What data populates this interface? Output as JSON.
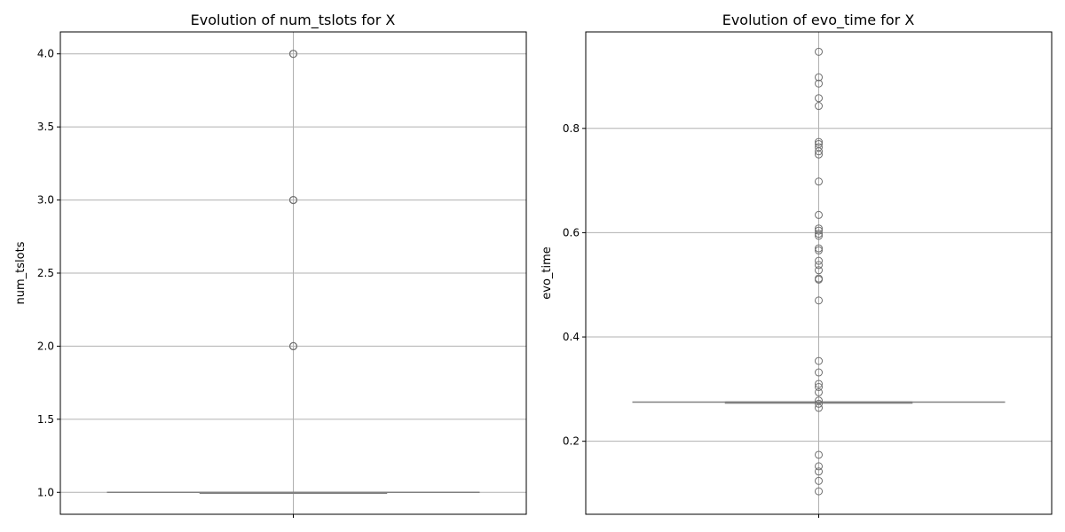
{
  "chart_data": [
    {
      "type": "box",
      "title": "Evolution of num_tslots for X",
      "xlabel": "",
      "ylabel": "num_tslots",
      "ylim": [
        0.85,
        4.15
      ],
      "yticks": [
        "1.0",
        "1.5",
        "2.0",
        "2.5",
        "3.0",
        "3.5",
        "4.0"
      ],
      "grid": true,
      "box": {
        "q1": 1.0,
        "median": 1.0,
        "q3": 1.0,
        "whisker_low": 1.0,
        "whisker_high": 1.0
      },
      "outliers": [
        2.0,
        2.0,
        2.0,
        3.0,
        3.0,
        3.0,
        4.0,
        4.0,
        4.0
      ],
      "colors": {
        "box": "#808080",
        "outlier": "#707070",
        "grid": "#b0b0b0"
      }
    },
    {
      "type": "box",
      "title": "Evolution of evo_time for X",
      "xlabel": "",
      "ylabel": "evo_time",
      "ylim": [
        0.06,
        0.985
      ],
      "yticks": [
        "0.2",
        "0.4",
        "0.6",
        "0.8"
      ],
      "grid": true,
      "box": {
        "q1": 0.275,
        "median": 0.275,
        "q3": 0.275,
        "whisker_low": 0.275,
        "whisker_high": 0.275
      },
      "outliers": [
        0.104,
        0.124,
        0.142,
        0.152,
        0.174,
        0.264,
        0.272,
        0.278,
        0.294,
        0.304,
        0.31,
        0.332,
        0.354,
        0.47,
        0.51,
        0.512,
        0.528,
        0.538,
        0.546,
        0.566,
        0.57,
        0.594,
        0.598,
        0.604,
        0.608,
        0.634,
        0.698,
        0.75,
        0.756,
        0.764,
        0.77,
        0.774,
        0.843,
        0.858,
        0.886,
        0.898,
        0.947
      ],
      "colors": {
        "box": "#808080",
        "outlier": "#707070",
        "grid": "#b0b0b0"
      }
    }
  ]
}
